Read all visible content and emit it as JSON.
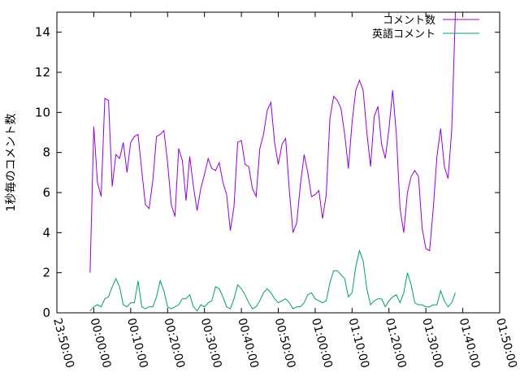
{
  "chart_data": {
    "type": "line",
    "title": "",
    "xlabel": "",
    "ylabel": "1秒毎のコメント数",
    "xlim": [
      "23:50:00",
      "01:50:00"
    ],
    "ylim": [
      0,
      15
    ],
    "x_ticks": [
      "23:50:00",
      "00:00:00",
      "00:10:00",
      "00:20:00",
      "00:30:00",
      "00:40:00",
      "00:50:00",
      "01:00:00",
      "01:10:00",
      "01:20:00",
      "01:30:00",
      "01:40:00",
      "01:50:00"
    ],
    "y_ticks": [
      0,
      2,
      4,
      6,
      8,
      10,
      12,
      14
    ],
    "grid": false,
    "legend_position": "top-right",
    "x_interval": "1 minute",
    "x_start": "23:59:00",
    "series": [
      {
        "name": "コメント数",
        "color": "#9400d3",
        "values": [
          2.0,
          9.3,
          6.5,
          5.8,
          10.7,
          10.6,
          6.3,
          7.9,
          7.7,
          8.5,
          7.0,
          8.5,
          8.8,
          8.9,
          7.1,
          5.4,
          5.2,
          6.6,
          8.8,
          8.9,
          9.1,
          7.5,
          5.4,
          4.8,
          8.2,
          7.6,
          5.6,
          7.8,
          6.3,
          5.1,
          6.2,
          6.9,
          7.7,
          7.2,
          7.1,
          7.5,
          6.5,
          5.9,
          4.1,
          5.3,
          8.5,
          8.6,
          7.4,
          7.3,
          6.2,
          5.8,
          8.2,
          8.9,
          10.1,
          10.5,
          8.5,
          7.4,
          8.4,
          8.7,
          6.1,
          4.0,
          4.5,
          6.4,
          7.9,
          7.0,
          5.8,
          5.9,
          6.1,
          4.7,
          5.9,
          9.7,
          10.8,
          10.6,
          10.2,
          8.9,
          7.2,
          9.5,
          11.1,
          11.6,
          11.1,
          9.0,
          7.3,
          9.8,
          10.3,
          8.4,
          7.7,
          9.2,
          11.1,
          8.9,
          5.2,
          4.0,
          6.0,
          6.8,
          7.1,
          6.8,
          4.2,
          3.2,
          3.1,
          5.2,
          7.8,
          9.2,
          7.3,
          6.7,
          9.1,
          15.0
        ]
      },
      {
        "name": "英語コメント",
        "color": "#009e73",
        "values": [
          0.1,
          0.3,
          0.4,
          0.3,
          0.7,
          0.8,
          1.3,
          1.7,
          1.3,
          0.4,
          0.3,
          0.5,
          0.5,
          1.6,
          0.3,
          0.2,
          0.3,
          0.3,
          0.8,
          1.6,
          1.1,
          0.3,
          0.2,
          0.3,
          0.4,
          0.7,
          0.7,
          0.9,
          0.3,
          0.1,
          0.4,
          0.3,
          0.5,
          0.6,
          1.3,
          1.2,
          0.8,
          0.3,
          0.2,
          0.7,
          1.4,
          1.2,
          0.9,
          0.5,
          0.2,
          0.3,
          0.6,
          1.0,
          1.2,
          1.0,
          0.7,
          0.5,
          0.6,
          0.7,
          0.5,
          0.2,
          0.3,
          0.3,
          0.5,
          0.9,
          1.0,
          0.7,
          0.6,
          0.5,
          0.6,
          1.5,
          2.1,
          2.1,
          1.9,
          1.7,
          0.8,
          1.0,
          2.3,
          3.1,
          2.6,
          1.2,
          0.4,
          0.6,
          0.7,
          0.7,
          0.3,
          0.6,
          0.8,
          0.9,
          0.5,
          1.0,
          2.0,
          1.4,
          0.5,
          0.4,
          0.4,
          0.3,
          0.3,
          0.4,
          0.4,
          1.1,
          0.6,
          0.3,
          0.5,
          1.0
        ]
      }
    ]
  }
}
